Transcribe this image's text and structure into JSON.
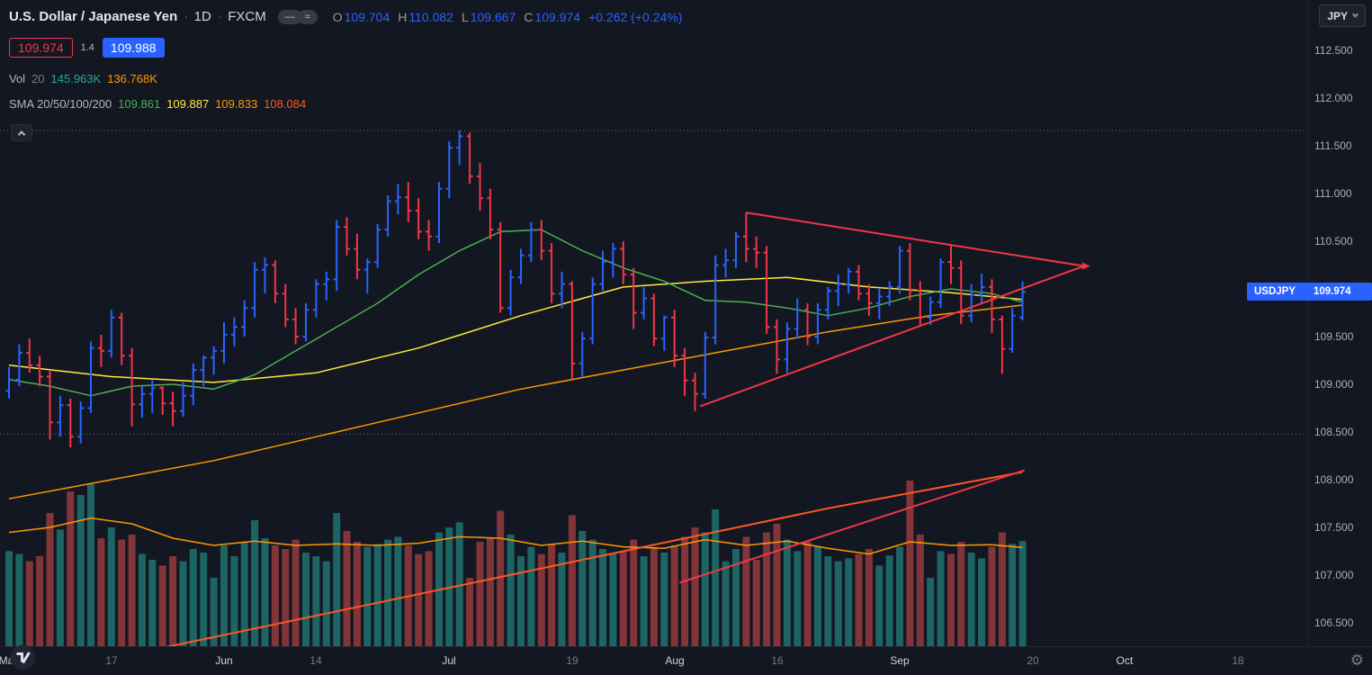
{
  "header": {
    "symbol_title": "U.S. Dollar / Japanese Yen",
    "sep": "·",
    "interval": "1D",
    "exchange": "FXCM",
    "toggle_dash": "—",
    "toggle_wave": "≈",
    "ohlc": {
      "o_label": "O",
      "o": "109.704",
      "h_label": "H",
      "h": "110.082",
      "l_label": "L",
      "l": "109.667",
      "c_label": "C",
      "c": "109.974",
      "change": "+0.262 (+0.24%)"
    },
    "bid_badge": "109.974",
    "spread": "1.4",
    "ask_badge": "109.988",
    "volume_row": {
      "label": "Vol",
      "length": "20",
      "value": "145.963K",
      "ma_value": "136.768K"
    },
    "sma_row": {
      "label": "SMA 20/50/100/200",
      "v20": "109.861",
      "v50": "109.887",
      "v100": "109.833",
      "v200": "108.084"
    }
  },
  "top_right": {
    "currency": "JPY"
  },
  "price_tag": {
    "symbol": "USDJPY",
    "price": "109.974",
    "price_value": 109.974
  },
  "icons": {
    "gear": "⚙",
    "collapse": "chevron-up",
    "currency_dropdown": "chevron-down",
    "logo": "tradingview-mark"
  },
  "chart_data": {
    "type": "ohlc-bar",
    "symbol": "USDJPY",
    "interval": "1D",
    "price_axis_range": [
      106.2,
      112.95
    ],
    "grid": "off",
    "colors": {
      "background": "#131722",
      "up": "#2962ff",
      "down": "#f23645",
      "accent": "#2962ff",
      "bid_red": "#f23645",
      "ohlc_value": "#2962ff",
      "vol_value": "#26a69a",
      "vol_ma_value": "#ff9800",
      "sma20": "#4caf50",
      "sma50": "#ffeb3b",
      "sma100": "#ff9800",
      "sma200": "#ff5722",
      "vol_up": "rgba(38,166,154,0.55)",
      "vol_down": "rgba(239,83,80,0.5)",
      "trendline": "#f23645",
      "dotted": "#6a6d78"
    },
    "price_ticks": [
      {
        "label": "112.500",
        "value": 112.5
      },
      {
        "label": "112.000",
        "value": 112.0
      },
      {
        "label": "111.500",
        "value": 111.5
      },
      {
        "label": "111.000",
        "value": 111.0
      },
      {
        "label": "110.500",
        "value": 110.5
      },
      {
        "label": "110.000",
        "value": 110.0
      },
      {
        "label": "109.500",
        "value": 109.5
      },
      {
        "label": "109.000",
        "value": 109.0
      },
      {
        "label": "108.500",
        "value": 108.5
      },
      {
        "label": "108.000",
        "value": 108.0
      },
      {
        "label": "107.500",
        "value": 107.5
      },
      {
        "label": "107.000",
        "value": 107.0
      },
      {
        "label": "106.500",
        "value": 106.5
      }
    ],
    "time_ticks": [
      {
        "label": "May",
        "index": 0,
        "major": true
      },
      {
        "label": "17",
        "index": 10,
        "major": false
      },
      {
        "label": "Jun",
        "index": 21,
        "major": true
      },
      {
        "label": "14",
        "index": 30,
        "major": false
      },
      {
        "label": "Jul",
        "index": 43,
        "major": true
      },
      {
        "label": "19",
        "index": 55,
        "major": false
      },
      {
        "label": "Aug",
        "index": 65,
        "major": true
      },
      {
        "label": "16",
        "index": 75,
        "major": false
      },
      {
        "label": "Sep",
        "index": 87,
        "major": true
      },
      {
        "label": "20",
        "index": 100,
        "major": false
      },
      {
        "label": "Oct",
        "index": 109,
        "major": true
      },
      {
        "label": "18",
        "index": 120,
        "major": false
      }
    ],
    "dotted_levels": [
      111.66,
      108.48
    ],
    "bars": [
      [
        108.93,
        109.18,
        108.85,
        109.05,
        132
      ],
      [
        109.05,
        109.42,
        108.98,
        109.33,
        128
      ],
      [
        109.33,
        109.48,
        109.12,
        109.2,
        118
      ],
      [
        109.2,
        109.3,
        108.98,
        109.08,
        125
      ],
      [
        109.08,
        109.15,
        108.42,
        108.6,
        185
      ],
      [
        108.6,
        108.88,
        108.45,
        108.78,
        162
      ],
      [
        108.78,
        108.85,
        108.34,
        108.45,
        215
      ],
      [
        108.45,
        108.82,
        108.38,
        108.75,
        210
      ],
      [
        108.75,
        109.45,
        108.7,
        109.38,
        225
      ],
      [
        109.38,
        109.52,
        109.18,
        109.35,
        150
      ],
      [
        109.35,
        109.78,
        109.28,
        109.7,
        165
      ],
      [
        109.7,
        109.75,
        109.2,
        109.3,
        148
      ],
      [
        109.3,
        109.38,
        108.56,
        108.79,
        155
      ],
      [
        108.79,
        108.98,
        108.65,
        108.9,
        128
      ],
      [
        108.9,
        109.05,
        108.7,
        108.96,
        120
      ],
      [
        108.96,
        108.98,
        108.68,
        108.8,
        112
      ],
      [
        108.8,
        108.92,
        108.56,
        108.72,
        125
      ],
      [
        108.72,
        109.02,
        108.66,
        108.88,
        118
      ],
      [
        108.88,
        109.22,
        108.78,
        109.15,
        135
      ],
      [
        109.15,
        109.3,
        108.98,
        109.28,
        130
      ],
      [
        109.28,
        109.4,
        109.1,
        109.35,
        95
      ],
      [
        109.35,
        109.65,
        109.22,
        109.52,
        140
      ],
      [
        109.52,
        109.7,
        109.4,
        109.6,
        125
      ],
      [
        109.6,
        109.88,
        109.5,
        109.8,
        145
      ],
      [
        109.8,
        110.28,
        109.7,
        110.2,
        175
      ],
      [
        110.2,
        110.33,
        109.95,
        110.25,
        150
      ],
      [
        110.25,
        110.3,
        109.85,
        109.95,
        140
      ],
      [
        109.95,
        110.05,
        109.6,
        109.68,
        135
      ],
      [
        109.68,
        109.8,
        109.42,
        109.5,
        148
      ],
      [
        109.5,
        109.85,
        109.45,
        109.78,
        130
      ],
      [
        109.78,
        110.1,
        109.7,
        110.05,
        125
      ],
      [
        110.05,
        110.18,
        109.88,
        110.1,
        118
      ],
      [
        110.1,
        110.72,
        109.98,
        110.65,
        185
      ],
      [
        110.65,
        110.75,
        110.35,
        110.42,
        160
      ],
      [
        110.42,
        110.58,
        110.1,
        110.2,
        145
      ],
      [
        110.2,
        110.32,
        109.95,
        110.28,
        138
      ],
      [
        110.28,
        110.68,
        110.22,
        110.62,
        142
      ],
      [
        110.62,
        110.98,
        110.55,
        110.92,
        148
      ],
      [
        110.92,
        111.1,
        110.78,
        110.96,
        152
      ],
      [
        110.96,
        111.12,
        110.7,
        110.82,
        140
      ],
      [
        110.82,
        110.95,
        110.52,
        110.6,
        128
      ],
      [
        110.6,
        110.72,
        110.4,
        110.55,
        132
      ],
      [
        110.55,
        111.12,
        110.48,
        111.05,
        158
      ],
      [
        111.05,
        111.55,
        110.95,
        111.48,
        165
      ],
      [
        111.48,
        111.66,
        111.3,
        111.6,
        172
      ],
      [
        111.6,
        111.64,
        111.1,
        111.18,
        95
      ],
      [
        111.18,
        111.32,
        110.82,
        110.95,
        145
      ],
      [
        110.95,
        111.05,
        110.52,
        110.62,
        150
      ],
      [
        110.62,
        110.7,
        109.75,
        109.8,
        188
      ],
      [
        109.8,
        110.2,
        109.72,
        110.12,
        155
      ],
      [
        110.12,
        110.42,
        110.05,
        110.35,
        125
      ],
      [
        110.35,
        110.7,
        110.28,
        110.62,
        138
      ],
      [
        110.62,
        110.72,
        110.3,
        110.4,
        128
      ],
      [
        110.4,
        110.48,
        109.85,
        109.95,
        142
      ],
      [
        109.95,
        110.18,
        109.8,
        110.05,
        130
      ],
      [
        110.05,
        110.08,
        109.06,
        109.22,
        182
      ],
      [
        109.22,
        109.55,
        109.08,
        109.48,
        160
      ],
      [
        109.48,
        110.12,
        109.42,
        110.05,
        148
      ],
      [
        110.05,
        110.4,
        109.98,
        110.28,
        135
      ],
      [
        110.28,
        110.48,
        110.12,
        110.42,
        128
      ],
      [
        110.42,
        110.5,
        110.05,
        110.15,
        132
      ],
      [
        110.15,
        110.22,
        109.58,
        109.75,
        148
      ],
      [
        109.75,
        110.02,
        109.68,
        109.9,
        125
      ],
      [
        109.9,
        109.95,
        109.4,
        109.48,
        138
      ],
      [
        109.48,
        109.72,
        109.35,
        109.7,
        130
      ],
      [
        109.7,
        109.78,
        109.18,
        109.3,
        140
      ],
      [
        109.3,
        109.38,
        108.88,
        109.04,
        152
      ],
      [
        109.04,
        109.12,
        108.72,
        108.9,
        165
      ],
      [
        108.9,
        109.55,
        108.85,
        109.49,
        158
      ],
      [
        109.49,
        110.35,
        109.42,
        110.25,
        190
      ],
      [
        110.25,
        110.42,
        110.12,
        110.3,
        118
      ],
      [
        110.3,
        110.6,
        110.22,
        110.55,
        135
      ],
      [
        110.55,
        110.8,
        110.28,
        110.42,
        152
      ],
      [
        110.42,
        110.55,
        110.22,
        110.38,
        120
      ],
      [
        110.38,
        110.45,
        109.53,
        109.6,
        158
      ],
      [
        109.6,
        109.68,
        109.11,
        109.26,
        170
      ],
      [
        109.26,
        109.65,
        109.12,
        109.58,
        148
      ],
      [
        109.58,
        109.9,
        109.48,
        109.78,
        132
      ],
      [
        109.78,
        109.85,
        109.41,
        109.5,
        145
      ],
      [
        109.5,
        109.85,
        109.42,
        109.78,
        138
      ],
      [
        109.78,
        110.02,
        109.68,
        109.98,
        125
      ],
      [
        109.98,
        110.15,
        109.82,
        110.05,
        118
      ],
      [
        110.05,
        110.22,
        109.95,
        110.18,
        122
      ],
      [
        110.18,
        110.25,
        109.88,
        109.95,
        128
      ],
      [
        109.95,
        110.05,
        109.72,
        109.85,
        135
      ],
      [
        109.85,
        110.0,
        109.68,
        109.92,
        112
      ],
      [
        109.92,
        110.08,
        109.82,
        110.02,
        126
      ],
      [
        110.02,
        110.45,
        109.95,
        110.4,
        138
      ],
      [
        110.4,
        110.48,
        109.88,
        109.98,
        230
      ],
      [
        109.98,
        110.08,
        109.62,
        109.7,
        155
      ],
      [
        109.7,
        109.92,
        109.62,
        109.86,
        95
      ],
      [
        109.86,
        110.32,
        109.8,
        110.28,
        132
      ],
      [
        110.28,
        110.45,
        110.05,
        110.22,
        128
      ],
      [
        110.22,
        110.3,
        109.63,
        109.72,
        145
      ],
      [
        109.72,
        110.05,
        109.65,
        109.94,
        130
      ],
      [
        109.94,
        110.16,
        109.85,
        110.02,
        122
      ],
      [
        110.02,
        110.1,
        109.54,
        109.68,
        138
      ],
      [
        109.68,
        109.72,
        109.11,
        109.37,
        158
      ],
      [
        109.37,
        109.8,
        109.33,
        109.72,
        142
      ],
      [
        109.7,
        110.08,
        109.67,
        109.97,
        146
      ]
    ],
    "sma_lines": [
      {
        "name": "SMA 20",
        "color_key": "sma20",
        "width": 1.5,
        "points": [
          [
            0,
            109.05
          ],
          [
            4,
            108.98
          ],
          [
            8,
            108.88
          ],
          [
            12,
            108.98
          ],
          [
            16,
            109.0
          ],
          [
            20,
            108.95
          ],
          [
            24,
            109.1
          ],
          [
            28,
            109.35
          ],
          [
            32,
            109.6
          ],
          [
            36,
            109.85
          ],
          [
            40,
            110.15
          ],
          [
            44,
            110.4
          ],
          [
            48,
            110.6
          ],
          [
            52,
            110.62
          ],
          [
            56,
            110.4
          ],
          [
            60,
            110.22
          ],
          [
            64,
            110.08
          ],
          [
            68,
            109.88
          ],
          [
            72,
            109.86
          ],
          [
            76,
            109.8
          ],
          [
            80,
            109.72
          ],
          [
            84,
            109.8
          ],
          [
            88,
            109.92
          ],
          [
            92,
            110.0
          ],
          [
            96,
            109.95
          ],
          [
            99,
            109.86
          ]
        ]
      },
      {
        "name": "SMA 50",
        "color_key": "sma50",
        "width": 1.5,
        "points": [
          [
            0,
            109.2
          ],
          [
            10,
            109.08
          ],
          [
            20,
            109.02
          ],
          [
            30,
            109.12
          ],
          [
            40,
            109.38
          ],
          [
            50,
            109.72
          ],
          [
            60,
            110.02
          ],
          [
            68,
            110.08
          ],
          [
            76,
            110.12
          ],
          [
            84,
            110.02
          ],
          [
            92,
            109.96
          ],
          [
            99,
            109.89
          ]
        ]
      },
      {
        "name": "SMA 100",
        "color_key": "sma100",
        "width": 1.5,
        "points": [
          [
            0,
            107.8
          ],
          [
            10,
            108.0
          ],
          [
            20,
            108.2
          ],
          [
            30,
            108.45
          ],
          [
            40,
            108.7
          ],
          [
            50,
            108.95
          ],
          [
            60,
            109.15
          ],
          [
            70,
            109.35
          ],
          [
            80,
            109.55
          ],
          [
            90,
            109.72
          ],
          [
            99,
            109.83
          ]
        ]
      },
      {
        "name": "SMA 200",
        "color_key": "sma200",
        "width": 2,
        "points": [
          [
            0,
            105.9
          ],
          [
            20,
            106.35
          ],
          [
            40,
            106.8
          ],
          [
            60,
            107.25
          ],
          [
            80,
            107.7
          ],
          [
            99,
            108.08
          ]
        ]
      }
    ],
    "volume_ma_points": [
      [
        0,
        158
      ],
      [
        4,
        165
      ],
      [
        8,
        178
      ],
      [
        12,
        170
      ],
      [
        16,
        150
      ],
      [
        20,
        140
      ],
      [
        24,
        146
      ],
      [
        28,
        140
      ],
      [
        32,
        142
      ],
      [
        36,
        140
      ],
      [
        40,
        143
      ],
      [
        44,
        152
      ],
      [
        48,
        150
      ],
      [
        52,
        140
      ],
      [
        56,
        146
      ],
      [
        60,
        138
      ],
      [
        64,
        136
      ],
      [
        68,
        148
      ],
      [
        72,
        140
      ],
      [
        76,
        146
      ],
      [
        80,
        136
      ],
      [
        84,
        128
      ],
      [
        88,
        145
      ],
      [
        92,
        140
      ],
      [
        96,
        141
      ],
      [
        99,
        137
      ]
    ],
    "trendlines": [
      {
        "name": "pennant-upper",
        "points": [
          [
            72,
            110.8
          ],
          [
            105,
            110.24
          ]
        ]
      },
      {
        "name": "pennant-lower",
        "points": [
          [
            67.5,
            108.77
          ],
          [
            105,
            110.24
          ]
        ]
      },
      {
        "name": "rising-support",
        "points": [
          [
            65.5,
            106.92
          ],
          [
            99.2,
            108.1
          ]
        ]
      }
    ],
    "trendline_apex": [
      105,
      110.24
    ]
  }
}
